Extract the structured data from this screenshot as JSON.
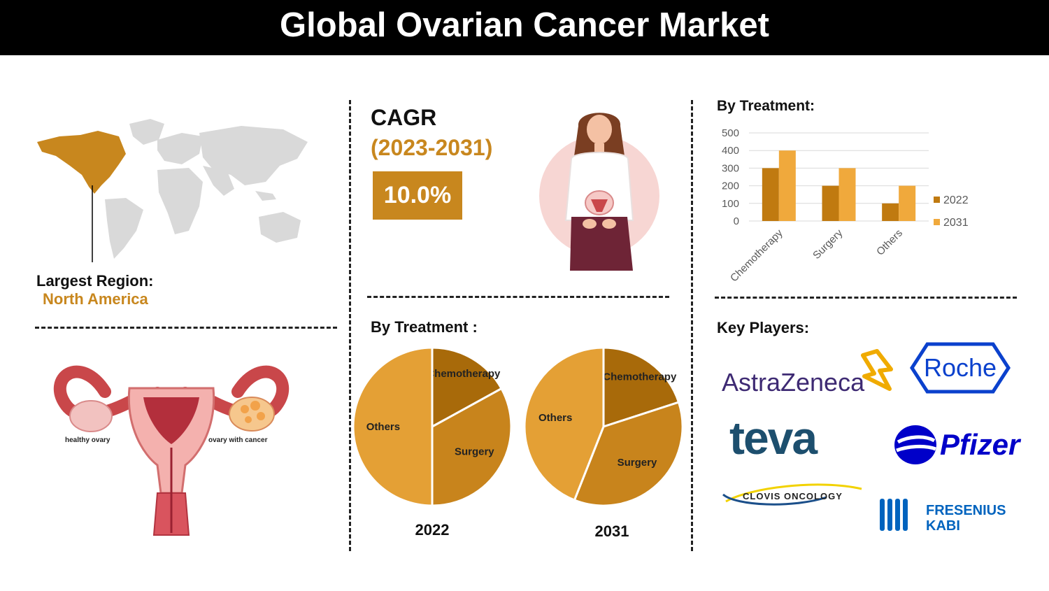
{
  "title": "Global Ovarian Cancer Market",
  "region": {
    "label": "Largest Region:",
    "value": "North America"
  },
  "cagr": {
    "title": "CAGR",
    "period": "(2023-2031)",
    "value": "10.0%"
  },
  "diagram_labels": {
    "healthy": "healthy ovary",
    "cancer": "ovary with cancer"
  },
  "pie_section": {
    "heading": "By Treatment :"
  },
  "bar_section": {
    "heading": "By Treatment:"
  },
  "players": {
    "heading": "Key Players:",
    "astrazeneca": "AstraZeneca",
    "roche": "Roche",
    "teva": "teva",
    "pfizer": "Pfizer",
    "clovis_a": "CLOVIS",
    "clovis_b": "ONCOLOGY",
    "fresenius_a": "FRESENIUS",
    "fresenius_b": "KABI"
  },
  "colors": {
    "accent": "#C8871E",
    "dark_bar": "#C07A10",
    "light_bar": "#F0A93C",
    "pie_dark": "#A86A0A",
    "pie_mid": "#C8841C",
    "pie_light": "#E4A035",
    "map_grey": "#D9D9D9",
    "roche_blue": "#0B41CD",
    "teva_blue": "#1D4F6E",
    "pfizer_blue": "#0000C9",
    "astra_purple": "#3E2A73",
    "astra_yellow": "#F0AB00"
  },
  "chart_data": [
    {
      "type": "bar",
      "categories": [
        "Chemotherapy",
        "Surgery",
        "Others"
      ],
      "series": [
        {
          "name": "2022",
          "values": [
            300,
            200,
            100
          ]
        },
        {
          "name": "2031",
          "values": [
            400,
            300,
            200
          ]
        }
      ],
      "ylim": [
        0,
        500
      ],
      "yticks": [
        0,
        100,
        200,
        300,
        400,
        500
      ],
      "grid": true,
      "legend": "right"
    },
    {
      "type": "pie",
      "name": "2022",
      "labels": [
        "Chemotherapy",
        "Surgery",
        "Others"
      ],
      "values": [
        17,
        33,
        50
      ]
    },
    {
      "type": "pie",
      "name": "2031",
      "labels": [
        "Chemotherapy",
        "Surgery",
        "Others"
      ],
      "values": [
        20,
        36,
        44
      ]
    }
  ]
}
